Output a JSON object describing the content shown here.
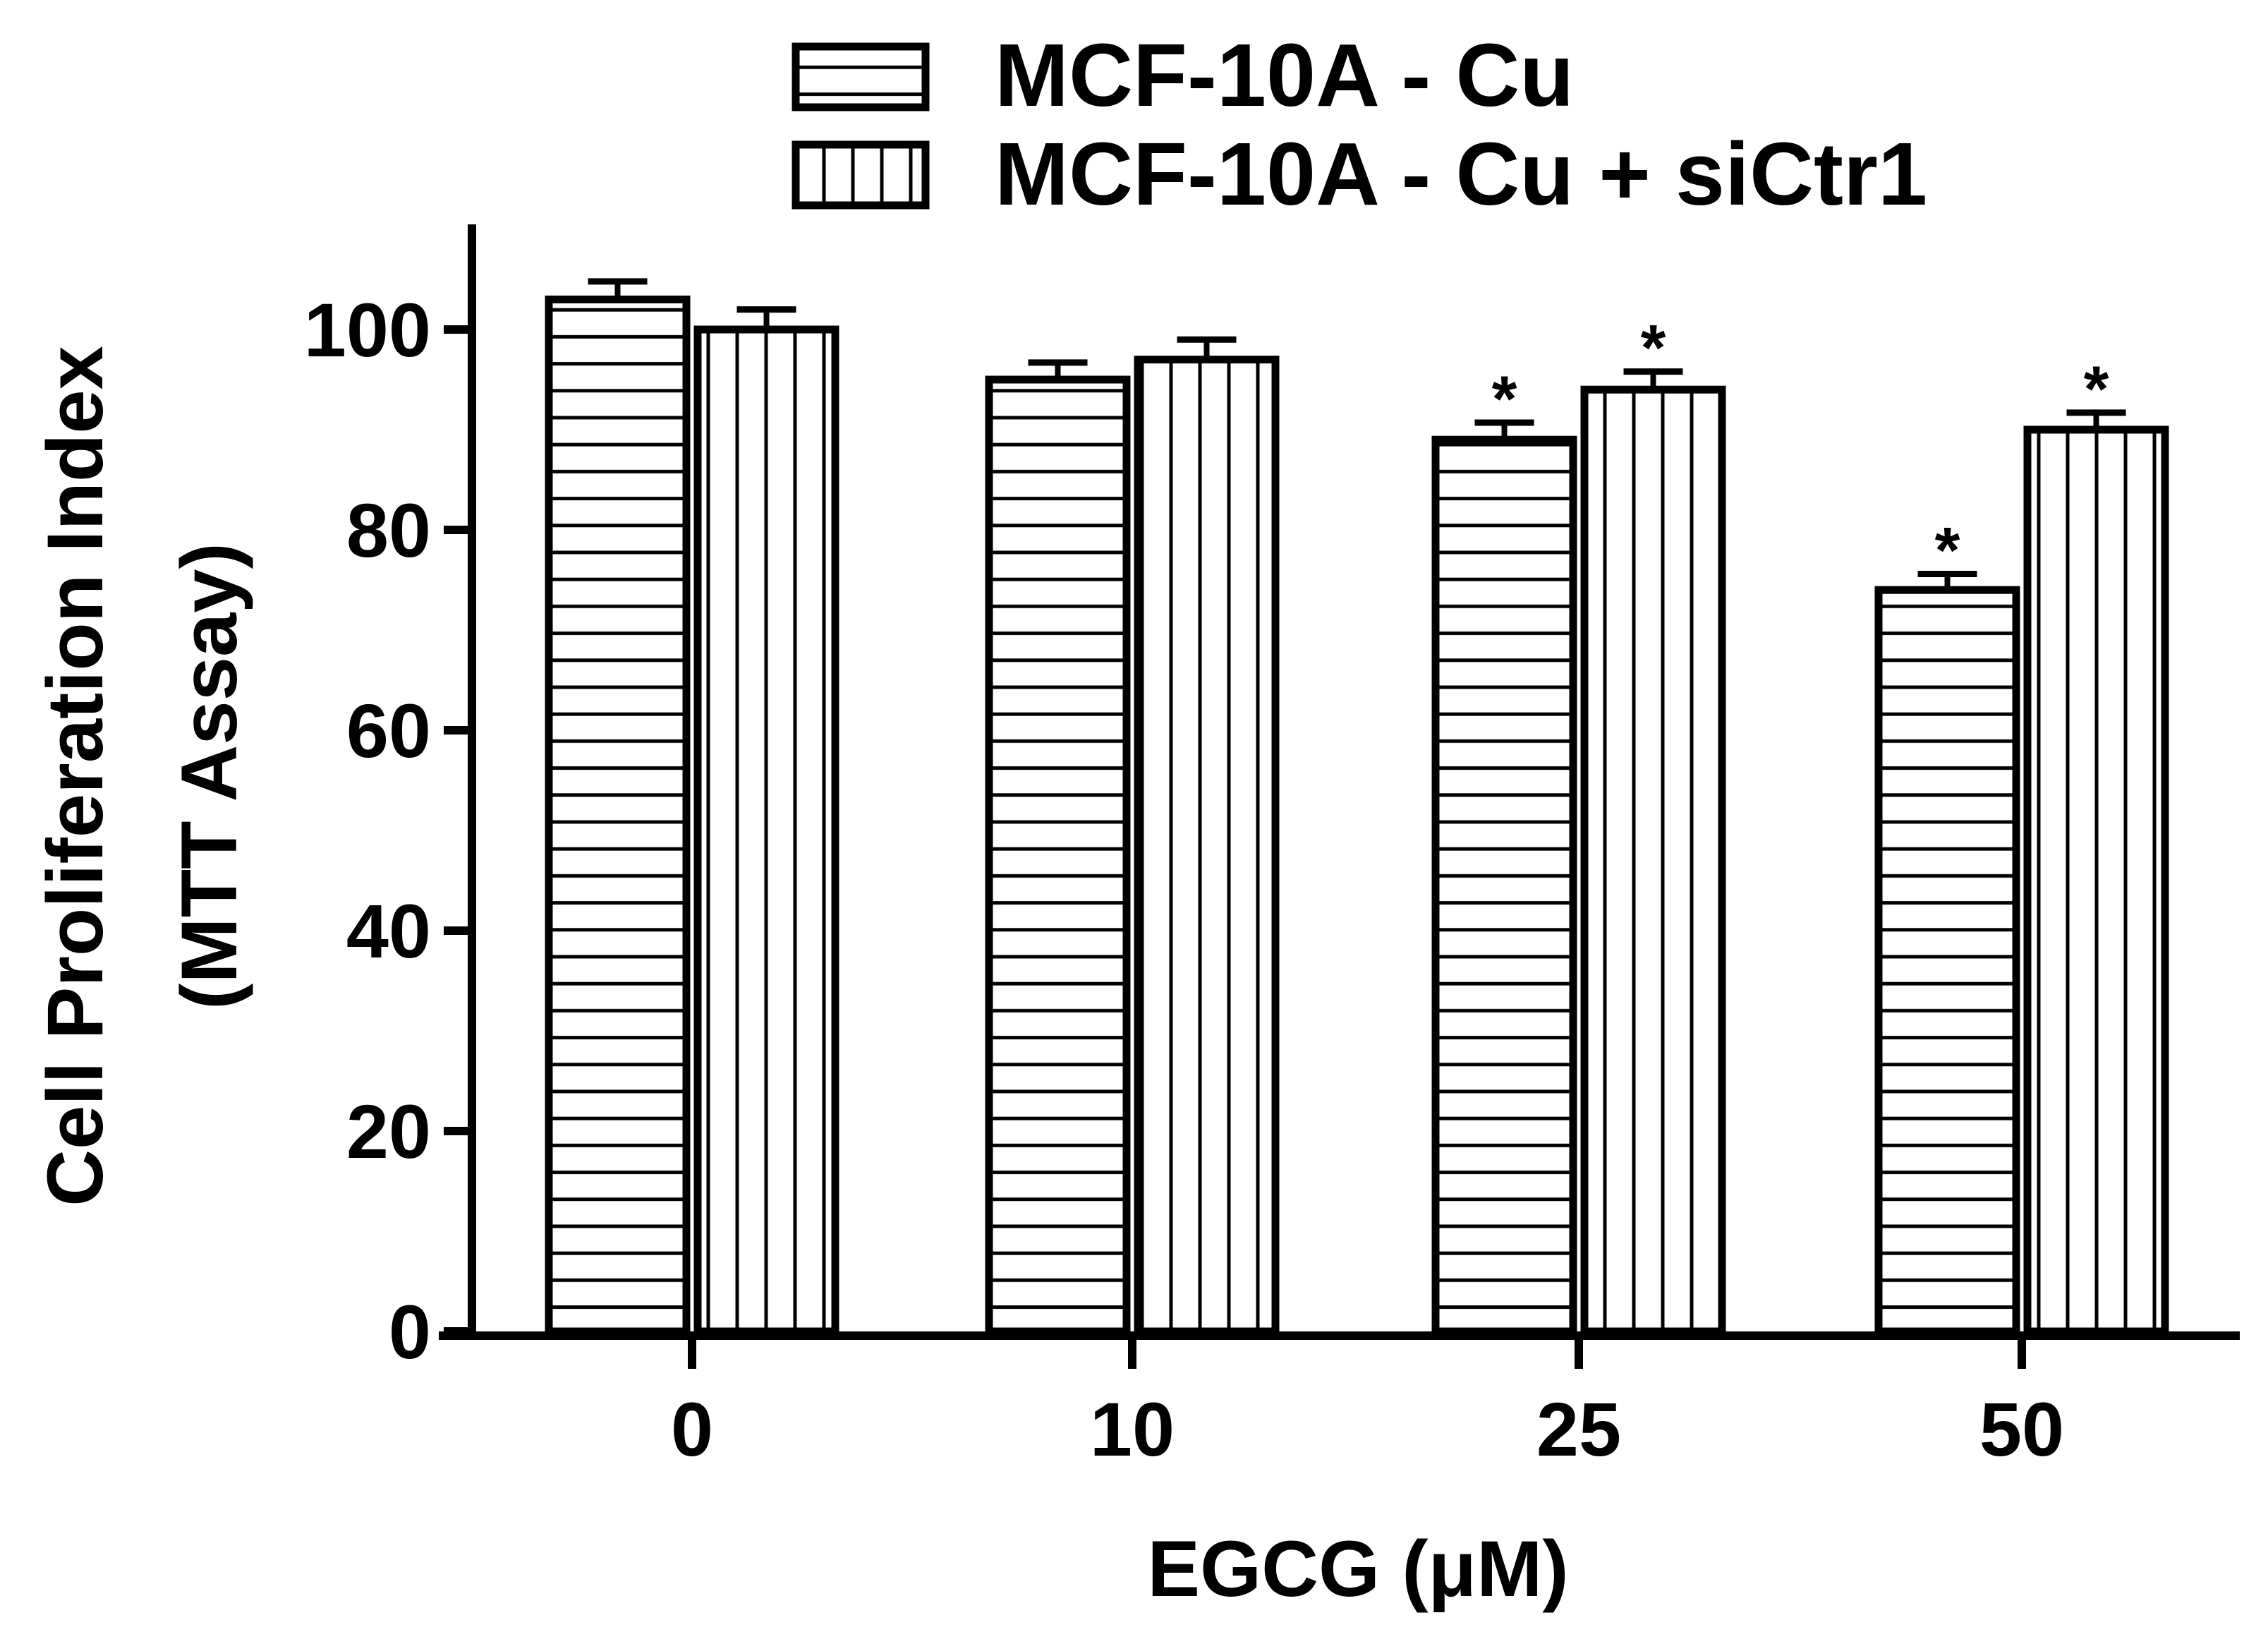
{
  "chart_data": {
    "type": "bar",
    "xlabel": "EGCG (μM)",
    "ylabel_line1": "Cell Proliferation Index",
    "ylabel_line2": "(MTT Assay)",
    "categories": [
      "0",
      "10",
      "25",
      "50"
    ],
    "ylim": [
      0,
      110
    ],
    "yticks": [
      "0",
      "20",
      "40",
      "60",
      "80",
      "100"
    ],
    "legend_position": "top",
    "series": [
      {
        "name": "MCF-10A - Cu",
        "pattern": "horizontal-stripes",
        "values": [
          103,
          95,
          89,
          74
        ],
        "errors": [
          1.8,
          1.7,
          1.7,
          1.6
        ],
        "annotations": [
          "",
          "",
          "*",
          "*"
        ]
      },
      {
        "name": "MCF-10A - Cu + siCtr1",
        "pattern": "vertical-stripes",
        "values": [
          100,
          97,
          94,
          90
        ],
        "errors": [
          2.0,
          2.0,
          1.8,
          1.7
        ],
        "annotations": [
          "",
          "",
          "*",
          "*"
        ]
      }
    ],
    "colors": {
      "stroke": "#000000",
      "fill": "#ffffff"
    }
  }
}
